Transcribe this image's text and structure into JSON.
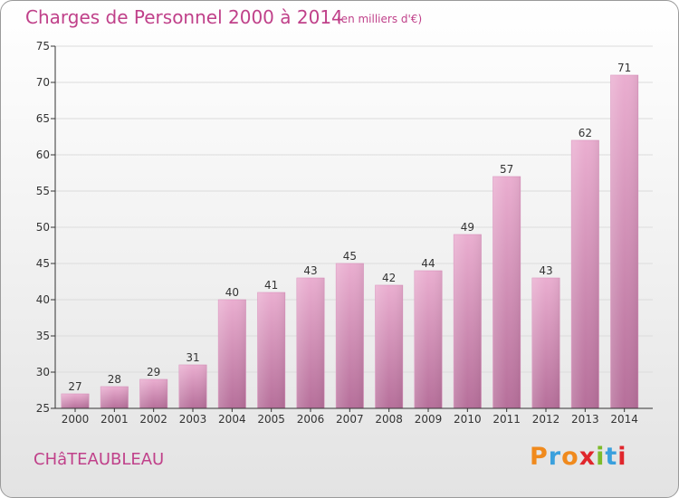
{
  "header": {
    "title": "Charges de Personnel 2000 à 2014",
    "subtitle": "(en milliers d'€)"
  },
  "footer": {
    "location": "CHâTEAUBLEAU",
    "brand": "Proxiti"
  },
  "colors": {
    "accent": "#c0418a",
    "bar_light": "#eaaed0",
    "bar_dark": "#b66f9a",
    "logo_letters": [
      "#f08a1d",
      "#3aa0dd",
      "#f08a1d",
      "#e0262c",
      "#7dbb2a",
      "#3aa0dd",
      "#e0262c"
    ]
  },
  "chart_data": {
    "type": "bar",
    "categories": [
      "2000",
      "2001",
      "2002",
      "2003",
      "2004",
      "2005",
      "2006",
      "2007",
      "2008",
      "2009",
      "2010",
      "2011",
      "2012",
      "2013",
      "2014"
    ],
    "values": [
      27,
      28,
      29,
      31,
      40,
      41,
      43,
      45,
      42,
      44,
      49,
      57,
      43,
      62,
      71
    ],
    "ylim": [
      25,
      75
    ],
    "yticks": [
      25,
      30,
      35,
      40,
      45,
      50,
      55,
      60,
      65,
      70,
      75
    ],
    "grid": true,
    "data_labels": true
  }
}
